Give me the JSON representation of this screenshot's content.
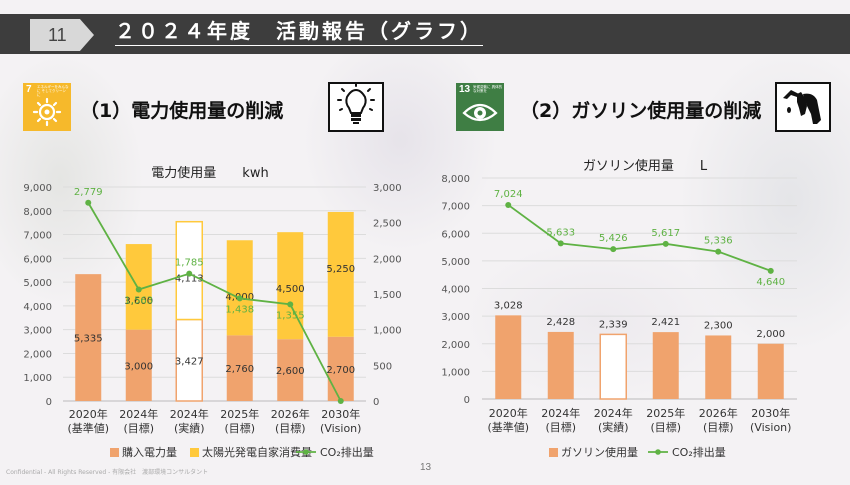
{
  "header": {
    "page_number": "11",
    "title": "２０２４年度　活動報告（グラフ）"
  },
  "sections": {
    "electricity": {
      "title": "（1）電力使用量の削減",
      "sdg_number": "7",
      "sdg_text": "エネルギーをみんなに そしてクリーンに",
      "icon": "light-bulb-icon"
    },
    "gasoline": {
      "title": "（2）ガソリン使用量の削減",
      "sdg_number": "13",
      "sdg_text": "気候変動に 具体的な対策を",
      "icon": "fuel-pump-icon"
    }
  },
  "chart_data": [
    {
      "type": "bar",
      "title": "電力使用量　　kwh",
      "stacked": true,
      "categories": [
        [
          "2020年",
          "(基準値)"
        ],
        [
          "2024年",
          "(目標)"
        ],
        [
          "2024年",
          "(実績)"
        ],
        [
          "2025年",
          "(目標)"
        ],
        [
          "2026年",
          "(目標)"
        ],
        [
          "2030年",
          "(Vision)"
        ]
      ],
      "ylim": [
        0,
        9000
      ],
      "yticks": [
        "0",
        "1,000",
        "2,000",
        "3,000",
        "4,000",
        "5,000",
        "6,000",
        "7,000",
        "8,000",
        "9,000"
      ],
      "y2lim": [
        0,
        3000
      ],
      "y2ticks": [
        "0",
        "500",
        "1,000",
        "1,500",
        "2,000",
        "2,500",
        "3,000"
      ],
      "series": [
        {
          "name": "購入電力量",
          "kind": "bar",
          "values": [
            5335,
            3000,
            3427,
            2760,
            2600,
            2700
          ],
          "labels": [
            "5,335",
            "3,000",
            "3,427",
            "2,760",
            "2,600",
            "2,700"
          ],
          "color": "#f0a36d"
        },
        {
          "name": "太陽光発電自家消費量",
          "kind": "bar",
          "values": [
            0,
            3600,
            4113,
            4000,
            4500,
            5250
          ],
          "labels": [
            "",
            "3,600",
            "4,113",
            "4,000",
            "4,500",
            "5,250"
          ],
          "color": "#ffc93c"
        },
        {
          "name": "CO₂排出量",
          "kind": "line",
          "axis": "right",
          "values": [
            2779,
            1563,
            1785,
            1438,
            1355,
            0
          ],
          "labels": [
            "2,779",
            "1,563",
            "1,785",
            "1,438",
            "1,355",
            ""
          ],
          "color": "#5fb244"
        }
      ],
      "actual_index": 2,
      "legend_position": "bottom"
    },
    {
      "type": "bar",
      "title": "ガソリン使用量　　L",
      "categories": [
        [
          "2020年",
          "(基準値)"
        ],
        [
          "2024年",
          "(目標)"
        ],
        [
          "2024年",
          "(実績)"
        ],
        [
          "2025年",
          "(目標)"
        ],
        [
          "2026年",
          "(目標)"
        ],
        [
          "2030年",
          "(Vision)"
        ]
      ],
      "ylim": [
        0,
        8000
      ],
      "yticks": [
        "0",
        "1,000",
        "2,000",
        "3,000",
        "4,000",
        "5,000",
        "6,000",
        "7,000",
        "8,000"
      ],
      "series": [
        {
          "name": "ガソリン使用量",
          "kind": "bar",
          "values": [
            3028,
            2428,
            2339,
            2421,
            2300,
            2000
          ],
          "labels": [
            "3,028",
            "2,428",
            "2,339",
            "2,421",
            "2,300",
            "2,000"
          ],
          "color": "#f0a36d"
        },
        {
          "name": "CO₂排出量",
          "kind": "line",
          "axis": "left",
          "values": [
            7024,
            5633,
            5426,
            5617,
            5336,
            4640
          ],
          "labels": [
            "7,024",
            "5,633",
            "5,426",
            "5,617",
            "5,336",
            "4,640"
          ],
          "color": "#5fb244"
        }
      ],
      "actual_index": 2,
      "legend_position": "bottom"
    }
  ],
  "footer": {
    "confidential": "Confidential - All Rights Reserved - 有限会社　渡部環境コンサルタント",
    "page": "13"
  }
}
